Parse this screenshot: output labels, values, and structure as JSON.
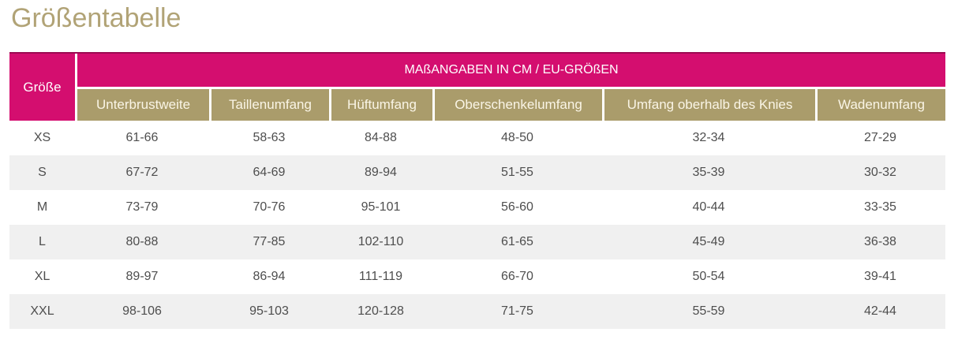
{
  "page": {
    "title": "Größentabelle"
  },
  "table": {
    "corner_header": "Größe",
    "group_header": "MAßANGABEN IN CM / EU-GRÖßEN",
    "columns": [
      "Unterbrustweite",
      "Taillenumfang",
      "Hüftumfang",
      "Oberschenkelumfang",
      "Umfang oberhalb des Knies",
      "Wadenumfang"
    ],
    "rows": [
      {
        "size": "XS",
        "values": [
          "61-66",
          "58-63",
          "84-88",
          "48-50",
          "32-34",
          "27-29"
        ]
      },
      {
        "size": "S",
        "values": [
          "67-72",
          "64-69",
          "89-94",
          "51-55",
          "35-39",
          "30-32"
        ]
      },
      {
        "size": "M",
        "values": [
          "73-79",
          "70-76",
          "95-101",
          "56-60",
          "40-44",
          "33-35"
        ]
      },
      {
        "size": "L",
        "values": [
          "80-88",
          "77-85",
          "102-110",
          "61-65",
          "45-49",
          "36-38"
        ]
      },
      {
        "size": "XL",
        "values": [
          "89-97",
          "86-94",
          "111-119",
          "66-70",
          "50-54",
          "39-41"
        ]
      },
      {
        "size": "XXL",
        "values": [
          "98-106",
          "95-103",
          "120-128",
          "71-75",
          "55-59",
          "42-44"
        ]
      }
    ]
  },
  "colors": {
    "accent_pink": "#d40e6f",
    "accent_pink_dark": "#9c0a52",
    "accent_khaki": "#aa9c6b",
    "header_text_cream": "#faf5e6",
    "title_text": "#b1a376",
    "body_text": "#4e4e4e",
    "row_alt_background": "#f0f0f0"
  }
}
